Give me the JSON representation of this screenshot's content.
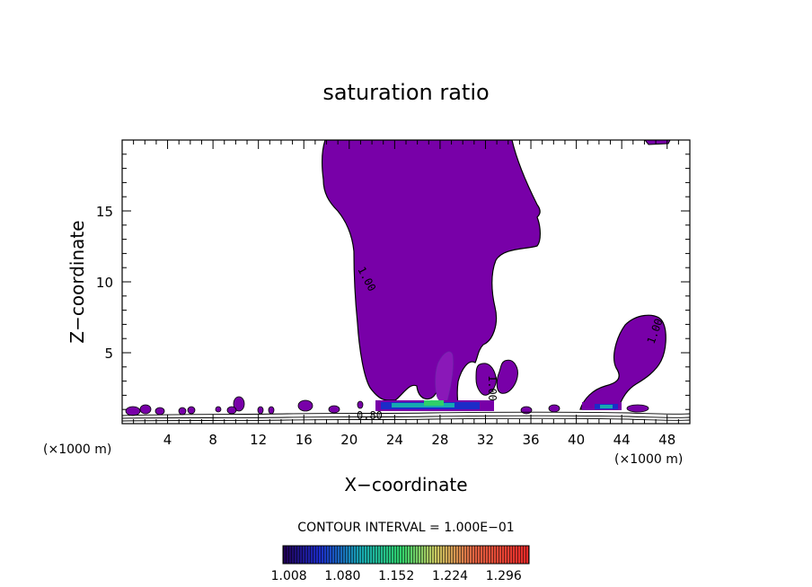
{
  "chart_data": {
    "type": "heatmap",
    "title": "saturation ratio",
    "xlabel": "X−coordinate",
    "ylabel": "Z−coordinate",
    "x_unit_left": "(×1000 m)",
    "x_unit_right": "(×1000 m)",
    "xlim": [
      0,
      50
    ],
    "ylim": [
      0,
      20
    ],
    "x_ticks": [
      4,
      8,
      12,
      16,
      20,
      24,
      28,
      32,
      36,
      40,
      44,
      48
    ],
    "y_ticks": [
      5,
      10,
      15
    ],
    "contour_interval_text": "CONTOUR INTERVAL = 1.000E−01",
    "contour_labels": [
      "1.00",
      "0.80",
      "1.00",
      "1.00"
    ],
    "colorbar_ticks": [
      "1.008",
      "1.080",
      "1.152",
      "1.224",
      "1.296"
    ],
    "colorbar_range": [
      1.0,
      1.33
    ],
    "colors": {
      "fill_main": "#7800a8",
      "fill_light": "#8a18b8",
      "teal": "#17a8b0",
      "green": "#2fd06a",
      "blue": "#1c2cc8",
      "line": "#000000"
    }
  }
}
